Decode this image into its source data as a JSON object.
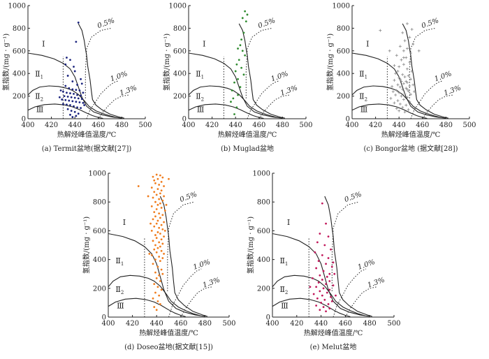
{
  "figure": {
    "y_label": "氢指数/(mg · g⁻¹)",
    "x_label": "热解烃峰值温度/℃",
    "zones": [
      "Ⅰ",
      "Ⅱ1",
      "Ⅱ2",
      "Ⅲ"
    ],
    "ro_labels": [
      "0.5%",
      "1.0%",
      "1.3%"
    ]
  },
  "chart_data": [
    {
      "type": "scatter",
      "caption": "(a)  Termit盆地(据文献[27])",
      "color": "#1a237e",
      "marker": "dot",
      "xlabel": "热解烃峰值温度/℃",
      "ylabel": "氢指数/(mg · g⁻¹)",
      "xlim": [
        400,
        500
      ],
      "ylim": [
        0,
        1000
      ],
      "xticks": [
        400,
        420,
        440,
        460,
        480,
        500
      ],
      "yticks": [
        0,
        200,
        400,
        600,
        800,
        1000
      ],
      "points": [
        [
          443,
          850
        ],
        [
          441,
          680
        ],
        [
          433,
          540
        ],
        [
          436,
          520
        ],
        [
          440,
          420
        ],
        [
          432,
          480
        ],
        [
          439,
          460
        ],
        [
          434,
          380
        ],
        [
          445,
          350
        ],
        [
          438,
          330
        ],
        [
          442,
          300
        ],
        [
          432,
          290
        ],
        [
          435,
          270
        ],
        [
          438,
          260
        ],
        [
          441,
          255
        ],
        [
          444,
          250
        ],
        [
          430,
          240
        ],
        [
          433,
          230
        ],
        [
          436,
          225
        ],
        [
          439,
          220
        ],
        [
          442,
          210
        ],
        [
          445,
          205
        ],
        [
          431,
          200
        ],
        [
          434,
          195
        ],
        [
          437,
          190
        ],
        [
          440,
          185
        ],
        [
          443,
          180
        ],
        [
          446,
          175
        ],
        [
          429,
          170
        ],
        [
          432,
          165
        ],
        [
          435,
          160
        ],
        [
          438,
          155
        ],
        [
          441,
          150
        ],
        [
          444,
          145
        ],
        [
          447,
          140
        ],
        [
          430,
          130
        ],
        [
          433,
          125
        ],
        [
          436,
          120
        ],
        [
          439,
          110
        ],
        [
          442,
          100
        ],
        [
          445,
          95
        ],
        [
          434,
          85
        ],
        [
          437,
          70
        ],
        [
          440,
          60
        ],
        [
          443,
          45
        ],
        [
          436,
          35
        ],
        [
          441,
          25
        ],
        [
          438,
          15
        ],
        [
          447,
          230
        ],
        [
          448,
          120
        ],
        [
          428,
          250
        ],
        [
          427,
          190
        ],
        [
          446,
          310
        ]
      ]
    },
    {
      "type": "scatter",
      "caption": "(b)  Muglad盆地",
      "color": "#2e8b2e",
      "marker": "dot",
      "xlabel": "热解烃峰值温度/℃",
      "ylabel": "氢指数/(mg · g⁻¹)",
      "xlim": [
        400,
        500
      ],
      "ylim": [
        0,
        1000
      ],
      "xticks": [
        400,
        420,
        440,
        460,
        480,
        500
      ],
      "yticks": [
        0,
        200,
        400,
        600,
        800,
        1000
      ],
      "points": [
        [
          448,
          950
        ],
        [
          450,
          920
        ],
        [
          446,
          890
        ],
        [
          449,
          860
        ],
        [
          447,
          760
        ],
        [
          445,
          700
        ],
        [
          444,
          650
        ],
        [
          442,
          620
        ],
        [
          446,
          600
        ],
        [
          448,
          560
        ],
        [
          443,
          520
        ],
        [
          441,
          480
        ],
        [
          445,
          450
        ],
        [
          440,
          420
        ],
        [
          447,
          390
        ],
        [
          442,
          350
        ],
        [
          439,
          320
        ],
        [
          444,
          280
        ],
        [
          437,
          250
        ],
        [
          442,
          210
        ],
        [
          438,
          180
        ],
        [
          436,
          150
        ],
        [
          441,
          100
        ],
        [
          439,
          40
        ]
      ]
    },
    {
      "type": "scatter",
      "caption": "(c)  Bongor盆地 (据文献[28])",
      "color": "#888888",
      "marker": "plus",
      "xlabel": "热解烃峰值温度/℃",
      "ylabel": "氢指数/(mg · g⁻¹)",
      "xlim": [
        400,
        500
      ],
      "ylim": [
        0,
        1000
      ],
      "xticks": [
        400,
        420,
        440,
        460,
        480,
        500
      ],
      "yticks": [
        0,
        200,
        400,
        600,
        800,
        1000
      ],
      "points": [
        [
          447,
          840
        ],
        [
          451,
          790
        ],
        [
          443,
          760
        ],
        [
          449,
          720
        ],
        [
          445,
          690
        ],
        [
          452,
          660
        ],
        [
          441,
          640
        ],
        [
          447,
          620
        ],
        [
          444,
          600
        ],
        [
          450,
          580
        ],
        [
          438,
          560
        ],
        [
          446,
          540
        ],
        [
          442,
          520
        ],
        [
          449,
          500
        ],
        [
          444,
          480
        ],
        [
          440,
          460
        ],
        [
          447,
          440
        ],
        [
          451,
          420
        ],
        [
          437,
          400
        ],
        [
          443,
          390
        ],
        [
          448,
          380
        ],
        [
          445,
          370
        ],
        [
          440,
          360
        ],
        [
          450,
          350
        ],
        [
          436,
          340
        ],
        [
          442,
          330
        ],
        [
          447,
          320
        ],
        [
          444,
          310
        ],
        [
          439,
          300
        ],
        [
          449,
          290
        ],
        [
          434,
          285
        ],
        [
          441,
          280
        ],
        [
          446,
          270
        ],
        [
          443,
          260
        ],
        [
          438,
          250
        ],
        [
          448,
          245
        ],
        [
          435,
          240
        ],
        [
          440,
          230
        ],
        [
          445,
          220
        ],
        [
          450,
          215
        ],
        [
          437,
          210
        ],
        [
          442,
          200
        ],
        [
          447,
          190
        ],
        [
          433,
          180
        ],
        [
          444,
          170
        ],
        [
          439,
          160
        ],
        [
          449,
          150
        ],
        [
          436,
          140
        ],
        [
          441,
          130
        ],
        [
          446,
          120
        ],
        [
          443,
          100
        ],
        [
          438,
          90
        ],
        [
          448,
          80
        ],
        [
          440,
          70
        ],
        [
          445,
          60
        ],
        [
          452,
          300
        ],
        [
          453,
          240
        ],
        [
          439,
          420
        ],
        [
          436,
          470
        ],
        [
          444,
          540
        ],
        [
          432,
          600
        ],
        [
          457,
          600
        ],
        [
          424,
          780
        ],
        [
          446,
          330
        ],
        [
          441,
          350
        ],
        [
          447,
          260
        ]
      ]
    },
    {
      "type": "scatter",
      "caption": "(d)  Doseo盆地(据文献[15])",
      "color": "#f07d1e",
      "marker": "dot",
      "xlabel": "热解烃峰值温度/℃",
      "ylabel": "氢指数/(mg · g⁻¹)",
      "xlim": [
        400,
        500
      ],
      "ylim": [
        0,
        1000
      ],
      "xticks": [
        400,
        420,
        440,
        460,
        480,
        500
      ],
      "yticks": [
        0,
        200,
        400,
        600,
        800,
        1000
      ],
      "points": [
        [
          440,
          990
        ],
        [
          443,
          985
        ],
        [
          437,
          975
        ],
        [
          445,
          970
        ],
        [
          441,
          960
        ],
        [
          438,
          950
        ],
        [
          444,
          940
        ],
        [
          439,
          930
        ],
        [
          442,
          920
        ],
        [
          446,
          910
        ],
        [
          436,
          900
        ],
        [
          441,
          890
        ],
        [
          444,
          880
        ],
        [
          438,
          870
        ],
        [
          443,
          860
        ],
        [
          440,
          850
        ],
        [
          446,
          840
        ],
        [
          437,
          830
        ],
        [
          442,
          820
        ],
        [
          445,
          810
        ],
        [
          439,
          800
        ],
        [
          443,
          790
        ],
        [
          441,
          780
        ],
        [
          436,
          770
        ],
        [
          444,
          760
        ],
        [
          440,
          750
        ],
        [
          447,
          740
        ],
        [
          438,
          730
        ],
        [
          442,
          720
        ],
        [
          445,
          710
        ],
        [
          439,
          700
        ],
        [
          443,
          690
        ],
        [
          437,
          680
        ],
        [
          441,
          670
        ],
        [
          446,
          660
        ],
        [
          440,
          650
        ],
        [
          444,
          640
        ],
        [
          438,
          630
        ],
        [
          442,
          620
        ],
        [
          445,
          610
        ],
        [
          436,
          600
        ],
        [
          441,
          590
        ],
        [
          443,
          580
        ],
        [
          439,
          570
        ],
        [
          446,
          560
        ],
        [
          440,
          550
        ],
        [
          444,
          540
        ],
        [
          437,
          530
        ],
        [
          442,
          520
        ],
        [
          445,
          510
        ],
        [
          439,
          500
        ],
        [
          443,
          490
        ],
        [
          441,
          480
        ],
        [
          438,
          470
        ],
        [
          444,
          460
        ],
        [
          440,
          450
        ],
        [
          446,
          440
        ],
        [
          436,
          430
        ],
        [
          442,
          420
        ],
        [
          445,
          410
        ],
        [
          439,
          400
        ],
        [
          443,
          390
        ],
        [
          437,
          370
        ],
        [
          441,
          350
        ],
        [
          444,
          330
        ],
        [
          439,
          310
        ],
        [
          442,
          290
        ],
        [
          440,
          270
        ],
        [
          443,
          250
        ],
        [
          438,
          230
        ],
        [
          441,
          210
        ],
        [
          444,
          190
        ],
        [
          439,
          170
        ],
        [
          442,
          150
        ],
        [
          437,
          130
        ],
        [
          441,
          110
        ],
        [
          443,
          90
        ],
        [
          438,
          70
        ],
        [
          440,
          50
        ],
        [
          445,
          300
        ],
        [
          447,
          600
        ],
        [
          448,
          780
        ],
        [
          450,
          960
        ],
        [
          434,
          440
        ],
        [
          435,
          650
        ],
        [
          433,
          840
        ],
        [
          425,
          910
        ]
      ]
    },
    {
      "type": "scatter",
      "caption": "(e)  Melut盆地",
      "color": "#c2185b",
      "marker": "dot",
      "xlabel": "热解烃峰值温度/℃",
      "ylabel": "氢指数/(mg · g⁻¹)",
      "xlim": [
        400,
        500
      ],
      "ylim": [
        0,
        1000
      ],
      "xticks": [
        400,
        420,
        440,
        460,
        480,
        500
      ],
      "yticks": [
        0,
        200,
        400,
        600,
        800,
        1000
      ],
      "points": [
        [
          441,
          790
        ],
        [
          444,
          650
        ],
        [
          439,
          580
        ],
        [
          446,
          560
        ],
        [
          437,
          520
        ],
        [
          443,
          500
        ],
        [
          448,
          470
        ],
        [
          435,
          450
        ],
        [
          441,
          430
        ],
        [
          446,
          410
        ],
        [
          438,
          390
        ],
        [
          444,
          370
        ],
        [
          449,
          350
        ],
        [
          436,
          340
        ],
        [
          442,
          320
        ],
        [
          447,
          300
        ],
        [
          439,
          290
        ],
        [
          445,
          280
        ],
        [
          433,
          270
        ],
        [
          441,
          260
        ],
        [
          447,
          250
        ],
        [
          438,
          240
        ],
        [
          444,
          230
        ],
        [
          450,
          220
        ],
        [
          436,
          210
        ],
        [
          442,
          200
        ],
        [
          447,
          190
        ],
        [
          439,
          180
        ],
        [
          445,
          170
        ],
        [
          434,
          160
        ],
        [
          441,
          150
        ],
        [
          448,
          140
        ],
        [
          437,
          130
        ],
        [
          443,
          120
        ],
        [
          449,
          110
        ],
        [
          440,
          100
        ],
        [
          446,
          90
        ],
        [
          436,
          80
        ],
        [
          442,
          70
        ],
        [
          447,
          60
        ],
        [
          439,
          50
        ],
        [
          444,
          40
        ],
        [
          451,
          300
        ],
        [
          452,
          150
        ],
        [
          431,
          210
        ],
        [
          450,
          380
        ]
      ]
    }
  ]
}
